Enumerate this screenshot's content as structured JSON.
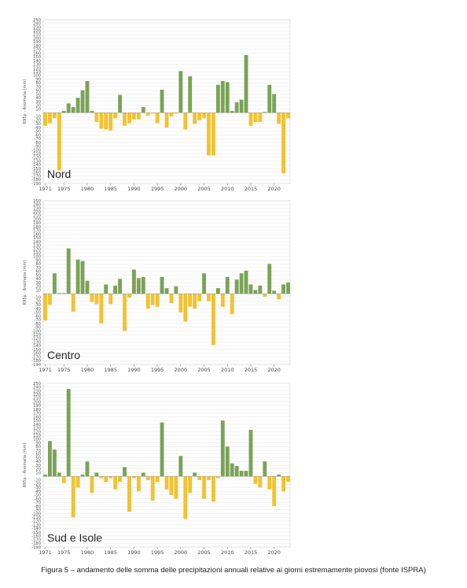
{
  "caption": "Figura 5 – andamento delle somma delle precipitazioni annuali relative ai giorni estremamente piovosi (fonte ISPRA)",
  "colors": {
    "positive": "#7aa356",
    "negative": "#f2c230",
    "axis": "#999999",
    "grid": "#e4e4e4"
  },
  "chart_data": [
    {
      "type": "bar",
      "title": "Nord",
      "ylabel": "R95p - Anomalia (mm)",
      "ylim": [
        -190,
        250
      ],
      "yticks": [
        250,
        240,
        230,
        220,
        210,
        200,
        190,
        180,
        170,
        160,
        150,
        140,
        130,
        120,
        110,
        100,
        90,
        80,
        70,
        60,
        50,
        40,
        30,
        20,
        10,
        -10,
        -20,
        -30,
        -40,
        -50,
        -60,
        -70,
        -80,
        -90,
        -100,
        -110,
        -120,
        -130,
        -140,
        -150,
        -160,
        -170,
        -180,
        -190
      ],
      "xticks": [
        1971,
        1975,
        1980,
        1985,
        1990,
        1995,
        2000,
        2005,
        2010,
        2015,
        2020
      ],
      "x": [
        1971,
        1972,
        1973,
        1974,
        1975,
        1976,
        1977,
        1978,
        1979,
        1980,
        1981,
        1982,
        1983,
        1984,
        1985,
        1986,
        1987,
        1988,
        1989,
        1990,
        1991,
        1992,
        1993,
        1994,
        1995,
        1996,
        1997,
        1998,
        1999,
        2000,
        2001,
        2002,
        2003,
        2004,
        2005,
        2006,
        2007,
        2008,
        2009,
        2010,
        2011,
        2012,
        2013,
        2014,
        2015,
        2016,
        2017,
        2018,
        2019,
        2020,
        2021,
        2022,
        2023
      ],
      "values": [
        -35,
        -28,
        -15,
        -155,
        5,
        25,
        15,
        40,
        60,
        85,
        5,
        -25,
        -43,
        -45,
        -48,
        -15,
        48,
        -35,
        -28,
        -18,
        -18,
        15,
        -8,
        -2,
        -28,
        62,
        -40,
        -10,
        -2,
        112,
        -45,
        98,
        -30,
        -20,
        -15,
        -115,
        -115,
        75,
        85,
        82,
        5,
        28,
        35,
        155,
        -35,
        -25,
        -25,
        2,
        75,
        50,
        -30,
        -163,
        -15
      ]
    },
    {
      "type": "bar",
      "title": "Centro",
      "ylabel": "R95p - Anomalia (mm)",
      "ylim": [
        -190,
        250
      ],
      "yticks": [
        250,
        240,
        230,
        220,
        210,
        200,
        190,
        180,
        170,
        160,
        150,
        140,
        130,
        120,
        110,
        100,
        90,
        80,
        70,
        60,
        50,
        40,
        30,
        20,
        10,
        -10,
        -20,
        -30,
        -40,
        -50,
        -60,
        -70,
        -80,
        -90,
        -100,
        -110,
        -120,
        -130,
        -140,
        -150,
        -160,
        -170,
        -180,
        -190
      ],
      "xticks": [
        1971,
        1975,
        1980,
        1985,
        1990,
        1995,
        2000,
        2005,
        2010,
        2015,
        2020
      ],
      "x": [
        1971,
        1972,
        1973,
        1974,
        1975,
        1976,
        1977,
        1978,
        1979,
        1980,
        1981,
        1982,
        1983,
        1984,
        1985,
        1986,
        1987,
        1988,
        1989,
        1990,
        1991,
        1992,
        1993,
        1994,
        1995,
        1996,
        1997,
        1998,
        1999,
        2000,
        2001,
        2002,
        2003,
        2004,
        2005,
        2006,
        2007,
        2008,
        2009,
        2010,
        2011,
        2012,
        2013,
        2014,
        2015,
        2016,
        2017,
        2018,
        2019,
        2020,
        2021,
        2022,
        2023
      ],
      "values": [
        -72,
        -30,
        55,
        2,
        2,
        122,
        -48,
        92,
        88,
        35,
        -22,
        -28,
        -80,
        25,
        -28,
        22,
        40,
        -100,
        -10,
        65,
        42,
        45,
        -40,
        -30,
        -35,
        45,
        15,
        -25,
        20,
        -50,
        -75,
        -35,
        -40,
        -20,
        55,
        -20,
        -138,
        15,
        -35,
        45,
        -55,
        38,
        55,
        62,
        25,
        10,
        22,
        -8,
        80,
        8,
        -15,
        25,
        30
      ]
    },
    {
      "type": "bar",
      "title": "Sud e Isole",
      "ylabel": "R95p - Anomalia (mm)",
      "ylim": [
        -190,
        250
      ],
      "yticks": [
        250,
        240,
        230,
        220,
        210,
        200,
        190,
        180,
        170,
        160,
        150,
        140,
        130,
        120,
        110,
        100,
        90,
        80,
        70,
        60,
        50,
        40,
        30,
        20,
        10,
        -10,
        -20,
        -30,
        -40,
        -50,
        -60,
        -70,
        -80,
        -90,
        -100,
        -110,
        -120,
        -130,
        -140,
        -150,
        -160,
        -170,
        -180,
        -190
      ],
      "xticks": [
        1971,
        1975,
        1980,
        1985,
        1990,
        1995,
        2000,
        2005,
        2010,
        2015,
        2020
      ],
      "x": [
        1971,
        1972,
        1973,
        1974,
        1975,
        1976,
        1977,
        1978,
        1979,
        1980,
        1981,
        1982,
        1983,
        1984,
        1985,
        1986,
        1987,
        1988,
        1989,
        1990,
        1991,
        1992,
        1993,
        1994,
        1995,
        1996,
        1997,
        1998,
        1999,
        2000,
        2001,
        2002,
        2003,
        2004,
        2005,
        2006,
        2007,
        2008,
        2009,
        2010,
        2011,
        2012,
        2013,
        2014,
        2015,
        2016,
        2017,
        2018,
        2019,
        2020,
        2021,
        2022,
        2023
      ],
      "values": [
        5,
        95,
        72,
        10,
        -18,
        235,
        -110,
        -30,
        5,
        40,
        -45,
        10,
        -5,
        -15,
        -5,
        -35,
        -15,
        25,
        -95,
        -5,
        -40,
        10,
        -10,
        -65,
        -15,
        145,
        -35,
        -50,
        -60,
        55,
        -115,
        -45,
        10,
        -10,
        -60,
        -10,
        -68,
        -5,
        150,
        80,
        35,
        28,
        15,
        15,
        125,
        -20,
        -30,
        40,
        -35,
        -80,
        5,
        -40,
        -15
      ]
    }
  ]
}
